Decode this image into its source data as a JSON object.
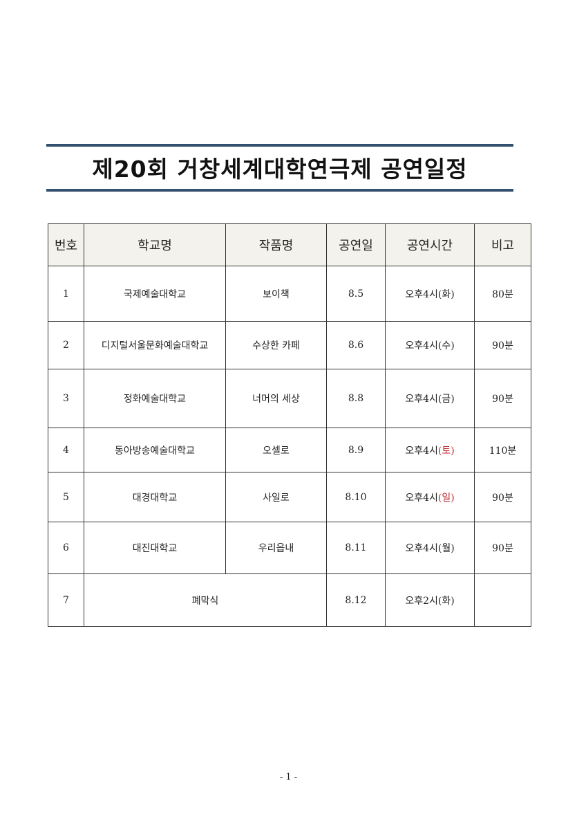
{
  "title": "제20회 거창세계대학연극제 공연일정",
  "table": {
    "headers": [
      "번호",
      "학교명",
      "작품명",
      "공연일",
      "공연시간",
      "비고"
    ],
    "rows": [
      {
        "no": "1",
        "school": "국제예술대학교",
        "work": "보이책",
        "date": "8.5",
        "time": "오후4시",
        "day": "(화)",
        "day_red": false,
        "note": "80분"
      },
      {
        "no": "2",
        "school": "디지털서울문화예술대학교",
        "work": "수상한 카페",
        "date": "8.6",
        "time": "오후4시",
        "day": "(수)",
        "day_red": false,
        "note": "90분"
      },
      {
        "no": "3",
        "school": "정화예술대학교",
        "work": "너머의 세상",
        "date": "8.8",
        "time": "오후4시",
        "day": "(금)",
        "day_red": false,
        "note": "90분"
      },
      {
        "no": "4",
        "school": "동아방송예술대학교",
        "work": "오셀로",
        "date": "8.9",
        "time": "오후4시",
        "day": "(토)",
        "day_red": true,
        "note": "110분"
      },
      {
        "no": "5",
        "school": "대경대학교",
        "work": "사일로",
        "date": "8.10",
        "time": "오후4시",
        "day": "(일)",
        "day_red": true,
        "note": "90분"
      },
      {
        "no": "6",
        "school": "대진대학교",
        "work": "우리읍내",
        "date": "8.11",
        "time": "오후4시",
        "day": "(월)",
        "day_red": false,
        "note": "90분"
      }
    ],
    "closing": {
      "no": "7",
      "label": "폐막식",
      "date": "8.12",
      "time": "오후2시",
      "day": "(화)",
      "note": ""
    }
  },
  "colors": {
    "rule": "#34506f",
    "header_bg": "#f4f2ec",
    "weekend": "#c0262d"
  },
  "footer": "- 1 -"
}
